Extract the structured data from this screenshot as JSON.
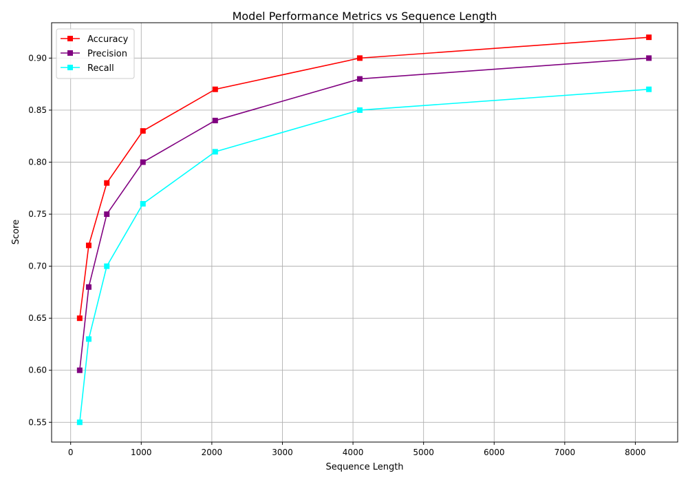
{
  "chart_data": {
    "type": "line",
    "title": "Model Performance Metrics vs Sequence Length",
    "xlabel": "Sequence Length",
    "ylabel": "Score",
    "xlim": [
      -270,
      8600
    ],
    "ylim": [
      0.531,
      0.934
    ],
    "xticks": [
      0,
      1000,
      2000,
      3000,
      4000,
      5000,
      6000,
      7000,
      8000
    ],
    "xtick_labels": [
      "0",
      "1000",
      "2000",
      "3000",
      "4000",
      "5000",
      "6000",
      "7000",
      "8000"
    ],
    "yticks": [
      0.55,
      0.6,
      0.65,
      0.7,
      0.75,
      0.8,
      0.85,
      0.9
    ],
    "ytick_labels": [
      "0.55",
      "0.60",
      "0.65",
      "0.70",
      "0.75",
      "0.80",
      "0.85",
      "0.90"
    ],
    "grid": true,
    "legend_position": "top-left",
    "marker": "square",
    "x": [
      128,
      256,
      512,
      1024,
      2048,
      4096,
      8192
    ],
    "series": [
      {
        "name": "Accuracy",
        "color": "#ff0000",
        "values": [
          0.65,
          0.72,
          0.78,
          0.83,
          0.87,
          0.9,
          0.92
        ]
      },
      {
        "name": "Precision",
        "color": "#800080",
        "values": [
          0.6,
          0.68,
          0.75,
          0.8,
          0.84,
          0.88,
          0.9
        ]
      },
      {
        "name": "Recall",
        "color": "#00ffff",
        "values": [
          0.55,
          0.63,
          0.7,
          0.76,
          0.81,
          0.85,
          0.87
        ]
      }
    ]
  }
}
